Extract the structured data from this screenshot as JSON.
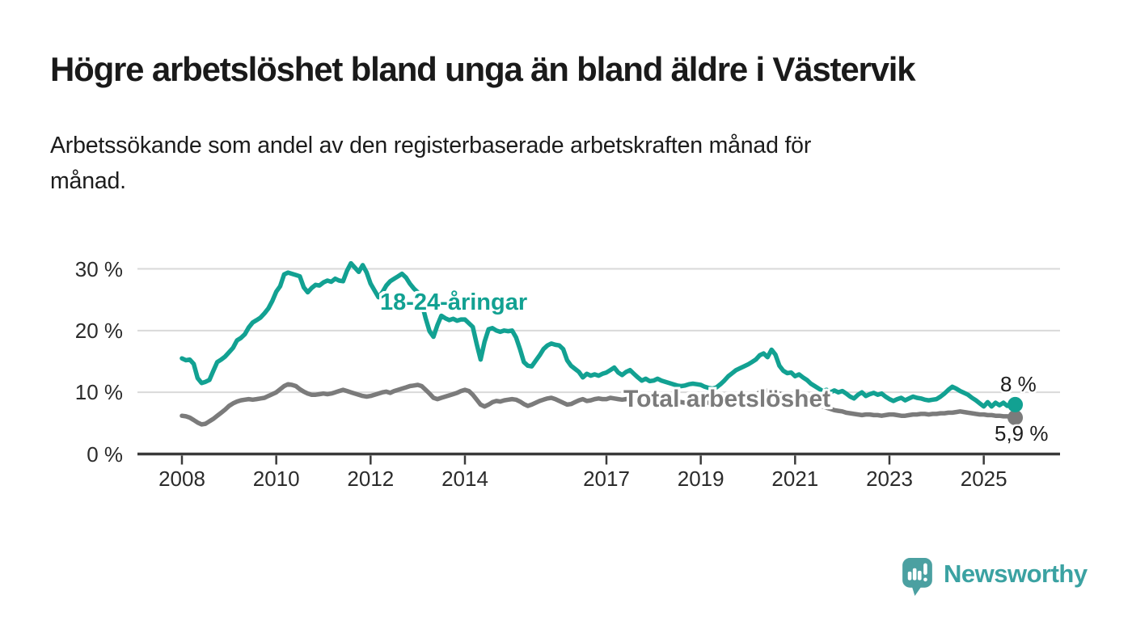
{
  "header": {
    "title": "Högre arbetslöshet bland unga än bland äldre i Västervik",
    "subtitle_lines": [
      "Arbetssökande som andel av den registerbaserade arbetskraften månad för",
      "månad."
    ]
  },
  "chart": {
    "series_labels": {
      "youth": "18-24-åringar",
      "total": "Total arbetslöshet"
    },
    "end_labels": {
      "youth": "8 %",
      "total": "5,9 %"
    },
    "colors": {
      "youth": "#12a192",
      "total": "#7b7b7b",
      "grid": "#d9d9d9",
      "axis": "#3a3a3a",
      "tick_text": "#2b2b2b"
    }
  },
  "chart_data": {
    "type": "line",
    "title": "Högre arbetslöshet bland unga än bland äldre i Västervik",
    "subtitle": "Arbetssökande som andel av den registerbaserade arbetskraften månad för månad.",
    "unit": "%",
    "frequency": "monthly",
    "xlim": [
      2007.9,
      2025.85
    ],
    "ylim": [
      0,
      32
    ],
    "grid": "horizontal",
    "legend_position": "inline-labels",
    "x_axis": {
      "ticks": [
        {
          "year": 2008,
          "label": "2008"
        },
        {
          "year": 2010,
          "label": "2010"
        },
        {
          "year": 2012,
          "label": "2012"
        },
        {
          "year": 2014,
          "label": "2014"
        },
        {
          "year": 2017,
          "label": "2017"
        },
        {
          "year": 2019,
          "label": "2019"
        },
        {
          "year": 2021,
          "label": "2021"
        },
        {
          "year": 2023,
          "label": "2023"
        },
        {
          "year": 2025,
          "label": "2025"
        }
      ]
    },
    "y_axis": {
      "ticks": [
        {
          "value": 0,
          "label": "0 %"
        },
        {
          "value": 10,
          "label": "10 %"
        },
        {
          "value": 20,
          "label": "20 %"
        },
        {
          "value": 30,
          "label": "30 %"
        }
      ]
    },
    "series": [
      {
        "name": "18-24-åringar",
        "color": "#12a192",
        "start_year": 2008,
        "end_value_label": "8 %",
        "last_value": 8.0,
        "values": [
          15.5,
          15.2,
          15.3,
          14.6,
          12.3,
          11.5,
          11.7,
          12.0,
          13.5,
          14.9,
          15.3,
          15.8,
          16.5,
          17.2,
          18.4,
          18.8,
          19.4,
          20.5,
          21.3,
          21.7,
          22.1,
          22.8,
          23.6,
          24.8,
          26.3,
          27.2,
          29.1,
          29.4,
          29.2,
          29.0,
          28.8,
          27.0,
          26.2,
          26.9,
          27.4,
          27.3,
          27.8,
          28.1,
          27.9,
          28.4,
          28.1,
          28.0,
          29.7,
          30.9,
          30.2,
          29.5,
          30.6,
          29.4,
          27.6,
          26.5,
          25.4,
          26.2,
          27.3,
          28.0,
          28.4,
          28.8,
          29.2,
          28.6,
          27.6,
          26.8,
          26.2,
          24.5,
          22.0,
          19.9,
          19.0,
          20.9,
          22.4,
          22.0,
          21.7,
          21.9,
          21.6,
          21.8,
          21.8,
          21.2,
          20.6,
          17.8,
          15.3,
          18.2,
          20.2,
          20.4,
          20.0,
          19.8,
          20.0,
          19.9,
          20.0,
          18.9,
          17.0,
          14.9,
          14.3,
          14.2,
          15.1,
          16.0,
          17.0,
          17.6,
          17.9,
          17.7,
          17.6,
          17.0,
          15.2,
          14.3,
          13.8,
          13.3,
          12.4,
          13.0,
          12.7,
          12.9,
          12.7,
          13.0,
          13.2,
          13.6,
          14.0,
          13.2,
          12.8,
          13.3,
          13.6,
          13.0,
          12.4,
          11.9,
          12.2,
          11.8,
          11.9,
          12.2,
          11.9,
          11.7,
          11.5,
          11.3,
          11.1,
          11.0,
          11.1,
          11.3,
          11.4,
          11.3,
          11.2,
          10.9,
          10.7,
          10.6,
          10.8,
          11.3,
          11.9,
          12.6,
          13.1,
          13.6,
          13.9,
          14.2,
          14.5,
          14.9,
          15.3,
          16.0,
          16.3,
          15.7,
          16.9,
          16.1,
          14.3,
          13.5,
          13.1,
          13.2,
          12.6,
          12.9,
          12.4,
          12.0,
          11.4,
          11.0,
          10.6,
          10.2,
          10.4,
          10.0,
          10.3,
          10.0,
          10.2,
          9.8,
          9.3,
          9.0,
          9.6,
          10.0,
          9.4,
          9.7,
          9.9,
          9.6,
          9.8,
          9.3,
          8.9,
          8.6,
          8.9,
          9.1,
          8.7,
          9.0,
          9.3,
          9.1,
          9.0,
          8.8,
          8.7,
          8.8,
          8.9,
          9.3,
          9.8,
          10.4,
          10.9,
          10.6,
          10.2,
          9.9,
          9.6,
          9.1,
          8.7,
          8.2,
          7.7,
          8.4,
          7.7,
          8.3,
          7.9,
          8.3,
          7.8,
          8.2,
          8.0
        ]
      },
      {
        "name": "Total arbetslöshet",
        "color": "#7b7b7b",
        "start_year": 2008,
        "end_value_label": "5,9 %",
        "last_value": 5.9,
        "values": [
          6.2,
          6.1,
          5.9,
          5.5,
          5.1,
          4.8,
          4.9,
          5.3,
          5.7,
          6.2,
          6.7,
          7.2,
          7.8,
          8.2,
          8.5,
          8.7,
          8.8,
          8.9,
          8.8,
          8.9,
          9.0,
          9.1,
          9.4,
          9.7,
          10.0,
          10.5,
          11.0,
          11.3,
          11.2,
          11.0,
          10.5,
          10.1,
          9.8,
          9.6,
          9.6,
          9.7,
          9.8,
          9.7,
          9.8,
          10.0,
          10.2,
          10.4,
          10.2,
          10.0,
          9.8,
          9.6,
          9.4,
          9.3,
          9.4,
          9.6,
          9.8,
          10.0,
          10.1,
          9.9,
          10.2,
          10.4,
          10.6,
          10.8,
          11.0,
          11.1,
          11.2,
          11.0,
          10.4,
          9.8,
          9.1,
          8.9,
          9.1,
          9.3,
          9.5,
          9.7,
          9.9,
          10.2,
          10.4,
          10.2,
          9.6,
          8.8,
          8.0,
          7.7,
          8.0,
          8.4,
          8.6,
          8.5,
          8.7,
          8.8,
          8.9,
          8.8,
          8.5,
          8.1,
          7.8,
          8.0,
          8.3,
          8.6,
          8.8,
          9.0,
          9.1,
          8.9,
          8.6,
          8.3,
          8.0,
          8.1,
          8.4,
          8.7,
          8.9,
          8.6,
          8.7,
          8.9,
          9.0,
          8.9,
          8.9,
          9.1,
          9.0,
          8.9,
          8.8,
          8.9,
          9.0,
          8.9,
          8.8,
          8.7,
          8.8,
          8.9,
          8.8,
          8.7,
          8.6,
          8.5,
          8.4,
          8.4,
          8.5,
          8.4,
          8.3,
          8.3,
          8.4,
          8.5,
          8.5,
          8.4,
          8.3,
          8.2,
          8.2,
          8.3,
          8.5,
          8.6,
          8.6,
          8.7,
          8.8,
          8.9,
          9.0,
          9.2,
          9.6,
          10.0,
          10.2,
          10.3,
          10.2,
          10.0,
          9.8,
          9.6,
          9.4,
          9.3,
          9.2,
          9.0,
          8.8,
          8.5,
          8.3,
          8.1,
          7.9,
          7.7,
          7.5,
          7.3,
          7.1,
          7.0,
          6.9,
          6.7,
          6.6,
          6.5,
          6.4,
          6.3,
          6.4,
          6.4,
          6.3,
          6.3,
          6.2,
          6.3,
          6.4,
          6.4,
          6.3,
          6.2,
          6.2,
          6.3,
          6.4,
          6.4,
          6.5,
          6.5,
          6.4,
          6.5,
          6.5,
          6.6,
          6.6,
          6.7,
          6.7,
          6.8,
          6.9,
          6.8,
          6.7,
          6.6,
          6.5,
          6.4,
          6.4,
          6.3,
          6.3,
          6.2,
          6.2,
          6.1,
          6.1,
          6.0,
          5.9
        ]
      }
    ]
  },
  "footer": {
    "brand": "Newsworthy"
  }
}
